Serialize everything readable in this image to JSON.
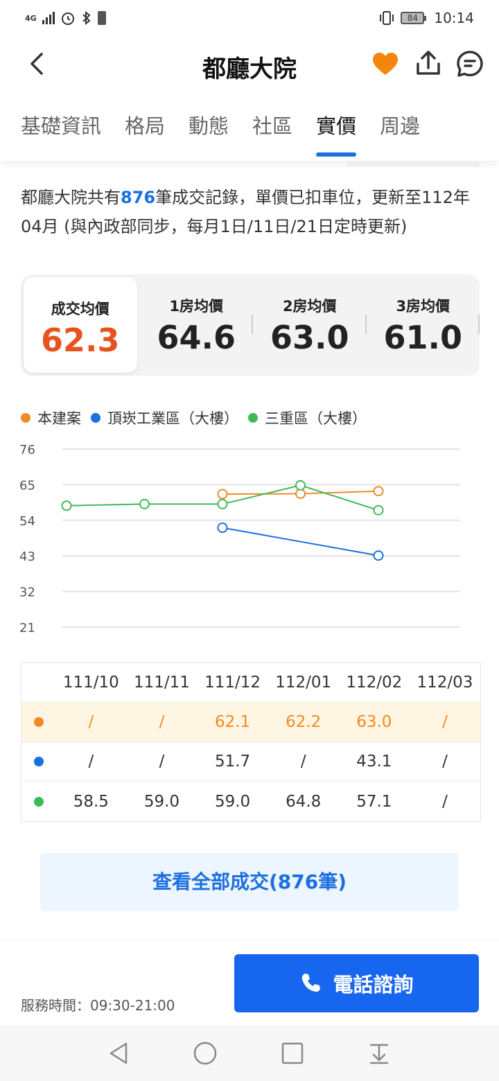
{
  "status_bar": {
    "network": "4G",
    "time": "10:14",
    "battery": "84"
  },
  "header": {
    "title": "都廳大院"
  },
  "tabs": [
    {
      "label": "基礎資訊"
    },
    {
      "label": "格局"
    },
    {
      "label": "動態"
    },
    {
      "label": "社區"
    },
    {
      "label": "實價"
    },
    {
      "label": "周邊"
    }
  ],
  "active_tab": "實價",
  "intro": {
    "prefix": "都廳大院共有",
    "count": "876",
    "suffix": "筆成交記錄，單價已扣車位，更新至112年04月 (與內政部同步，每月1日/11日/21日定時更新)"
  },
  "price_cards": [
    {
      "label": "成交均價",
      "value": "62.3"
    },
    {
      "label": "1房均價",
      "value": "64.6"
    },
    {
      "label": "2房均價",
      "value": "63.0"
    },
    {
      "label": "3房均價",
      "value": "61.0"
    }
  ],
  "colors": {
    "project": "#f08a22",
    "district": "#1b6fe0",
    "region": "#3dbb57",
    "accent": "#1766f0",
    "price": "#e8521f"
  },
  "chart_data": {
    "type": "line",
    "x": [
      "111/10",
      "111/11",
      "111/12",
      "112/01",
      "112/02",
      "112/03"
    ],
    "ylim": [
      21,
      76
    ],
    "yticks": [
      "76",
      "65",
      "54",
      "43",
      "32",
      "21"
    ],
    "legend_position": "top-left",
    "grid": true,
    "series": [
      {
        "name": "本建案",
        "color": "#f08a22",
        "values": [
          null,
          null,
          62.1,
          62.2,
          63.0,
          null
        ]
      },
      {
        "name": "頂崁工業區（大樓）",
        "color": "#1b6fe0",
        "values": [
          null,
          null,
          51.7,
          null,
          43.1,
          null
        ]
      },
      {
        "name": "三重區（大樓）",
        "color": "#3dbb57",
        "values": [
          58.5,
          59.0,
          59.0,
          64.8,
          57.1,
          null
        ]
      }
    ]
  },
  "table": {
    "headers": [
      "111/10",
      "111/11",
      "111/12",
      "112/01",
      "112/02",
      "112/03"
    ],
    "rows": [
      [
        "/",
        "/",
        "62.1",
        "62.2",
        "63.0",
        "/"
      ],
      [
        "/",
        "/",
        "51.7",
        "/",
        "43.1",
        "/"
      ],
      [
        "58.5",
        "59.0",
        "59.0",
        "64.8",
        "57.1",
        "/"
      ]
    ]
  },
  "see_all": {
    "label": "查看全部成交(876筆)"
  },
  "bottom": {
    "service_hours": "服務時間：09:30-21:00",
    "call_label": "電話諮詢"
  }
}
